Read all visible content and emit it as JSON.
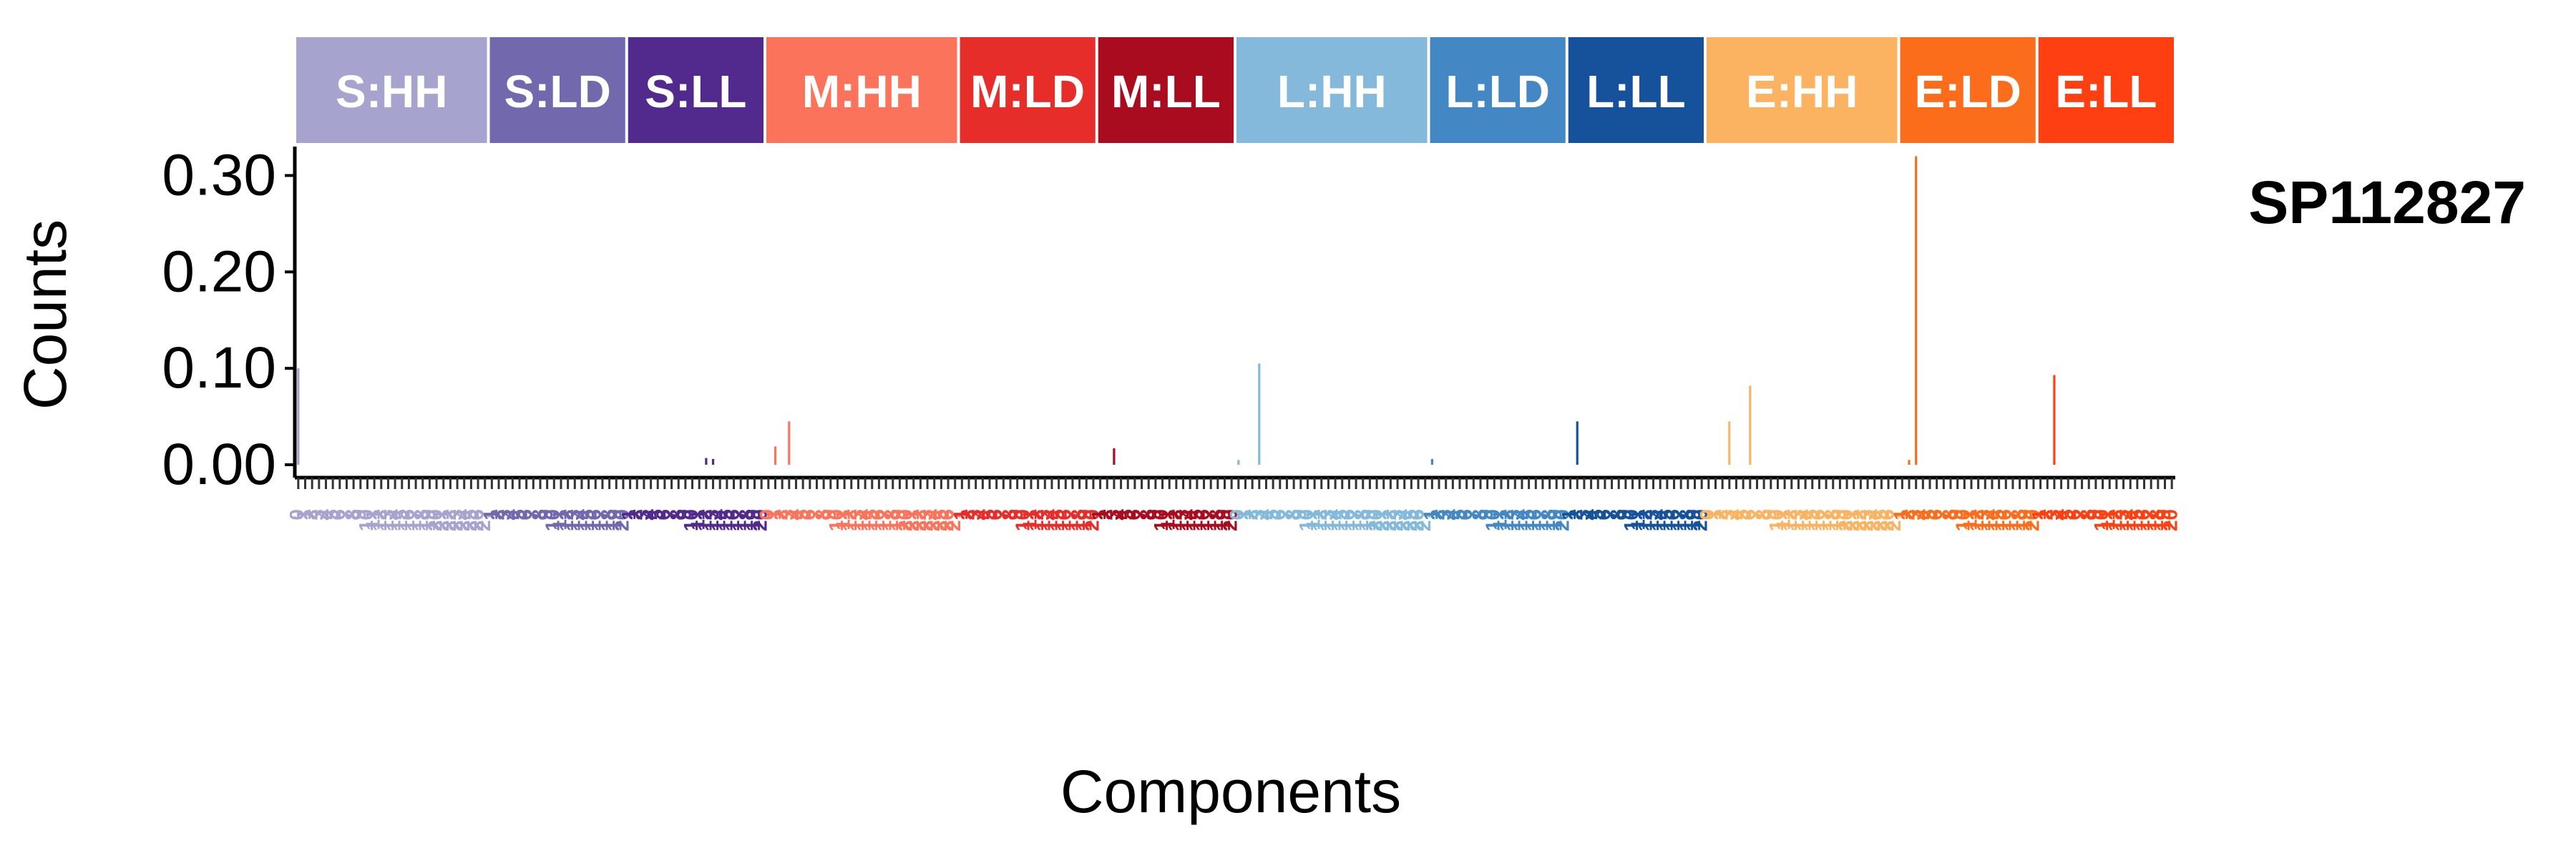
{
  "chart_data": {
    "type": "bar",
    "ylabel": "Counts",
    "xlabel": "Components",
    "sample": "SP112827",
    "ylim": [
      0,
      0.33
    ],
    "yticks": [
      {
        "value": 0.0,
        "label": "0.00"
      },
      {
        "value": 0.1,
        "label": "0.10"
      },
      {
        "value": 0.2,
        "label": "0.20"
      },
      {
        "value": 0.3,
        "label": "0.30"
      }
    ],
    "panels": [
      {
        "label": "S:HH",
        "color": "#a6a3cf",
        "nbars": 28
      },
      {
        "label": "S:LD",
        "color": "#7168ad",
        "nbars": 20
      },
      {
        "label": "S:LL",
        "color": "#52298c",
        "nbars": 20
      },
      {
        "label": "M:HH",
        "color": "#fb735a",
        "nbars": 28
      },
      {
        "label": "M:LD",
        "color": "#e72d2a",
        "nbars": 20
      },
      {
        "label": "M:LL",
        "color": "#aa0c1f",
        "nbars": 20
      },
      {
        "label": "L:HH",
        "color": "#84b9db",
        "nbars": 28
      },
      {
        "label": "L:LD",
        "color": "#4388c4",
        "nbars": 20
      },
      {
        "label": "L:LL",
        "color": "#16529b",
        "nbars": 20
      },
      {
        "label": "E:HH",
        "color": "#fbb362",
        "nbars": 28
      },
      {
        "label": "E:LD",
        "color": "#fb6d1b",
        "nbars": 20
      },
      {
        "label": "E:LL",
        "color": "#fd3f12",
        "nbars": 20
      }
    ],
    "nonzero": [
      {
        "panel": 0,
        "index": 0,
        "value": 0.1
      },
      {
        "panel": 2,
        "index": 11,
        "value": 0.007
      },
      {
        "panel": 2,
        "index": 12,
        "value": 0.006
      },
      {
        "panel": 3,
        "index": 1,
        "value": 0.019
      },
      {
        "panel": 3,
        "index": 3,
        "value": 0.045
      },
      {
        "panel": 5,
        "index": 2,
        "value": 0.017
      },
      {
        "panel": 6,
        "index": 0,
        "value": 0.005
      },
      {
        "panel": 6,
        "index": 3,
        "value": 0.105
      },
      {
        "panel": 7,
        "index": 0,
        "value": 0.006
      },
      {
        "panel": 8,
        "index": 1,
        "value": 0.045
      },
      {
        "panel": 9,
        "index": 3,
        "value": 0.045
      },
      {
        "panel": 9,
        "index": 6,
        "value": 0.082
      },
      {
        "panel": 10,
        "index": 1,
        "value": 0.005
      },
      {
        "panel": 10,
        "index": 2,
        "value": 0.32
      },
      {
        "panel": 11,
        "index": 2,
        "value": 0.093
      }
    ],
    "x_tick_labels": [
      "0",
      "1",
      "2",
      "3",
      "4",
      "5",
      "6",
      "7",
      "8",
      "9",
      "10",
      "11",
      "12",
      "13",
      "14",
      "15",
      "16",
      "17",
      "18",
      "19",
      "20",
      "21",
      "22",
      "23",
      "24",
      "25",
      "26",
      "27",
      "1",
      "2",
      "3",
      "4",
      "5",
      "6",
      "7",
      "8",
      "9",
      "10",
      "11",
      "12",
      "13",
      "14",
      "15",
      "16",
      "17",
      "18",
      "19",
      "20",
      "1",
      "2",
      "3",
      "4",
      "5",
      "6",
      "7",
      "8",
      "9",
      "10",
      "11",
      "12",
      "13",
      "14",
      "15",
      "16",
      "17",
      "18",
      "19",
      "20",
      "0",
      "1",
      "2",
      "3",
      "4",
      "5",
      "6",
      "7",
      "8",
      "9",
      "10",
      "11",
      "12",
      "13",
      "14",
      "15",
      "16",
      "17",
      "18",
      "19",
      "20",
      "21",
      "22",
      "23",
      "24",
      "25",
      "26",
      "27",
      "1",
      "2",
      "3",
      "4",
      "5",
      "6",
      "7",
      "8",
      "9",
      "10",
      "11",
      "12",
      "13",
      "14",
      "15",
      "16",
      "17",
      "18",
      "19",
      "20",
      "1",
      "2",
      "3",
      "4",
      "5",
      "6",
      "7",
      "8",
      "9",
      "10",
      "11",
      "12",
      "13",
      "14",
      "15",
      "16",
      "17",
      "18",
      "19",
      "20",
      "0",
      "1",
      "2",
      "3",
      "4",
      "5",
      "6",
      "7",
      "8",
      "9",
      "10",
      "11",
      "12",
      "13",
      "14",
      "15",
      "16",
      "17",
      "18",
      "19",
      "20",
      "21",
      "22",
      "23",
      "24",
      "25",
      "26",
      "27",
      "1",
      "2",
      "3",
      "4",
      "5",
      "6",
      "7",
      "8",
      "9",
      "10",
      "11",
      "12",
      "13",
      "14",
      "15",
      "16",
      "17",
      "18",
      "19",
      "20",
      "1",
      "2",
      "3",
      "4",
      "5",
      "6",
      "7",
      "8",
      "9",
      "10",
      "11",
      "12",
      "13",
      "14",
      "15",
      "16",
      "17",
      "18",
      "19",
      "20",
      "0",
      "1",
      "2",
      "3",
      "4",
      "5",
      "6",
      "7",
      "8",
      "9",
      "10",
      "11",
      "12",
      "13",
      "14",
      "15",
      "16",
      "17",
      "18",
      "19",
      "20",
      "21",
      "22",
      "23",
      "24",
      "25",
      "26",
      "27",
      "1",
      "2",
      "3",
      "4",
      "5",
      "6",
      "7",
      "8",
      "9",
      "10",
      "11",
      "12",
      "13",
      "14",
      "15",
      "16",
      "17",
      "18",
      "19",
      "20",
      "1",
      "2",
      "3",
      "4",
      "5",
      "6",
      "7",
      "8",
      "9",
      "10",
      "11",
      "12",
      "13",
      "14",
      "15",
      "16",
      "17",
      "18",
      "19",
      "20"
    ]
  }
}
